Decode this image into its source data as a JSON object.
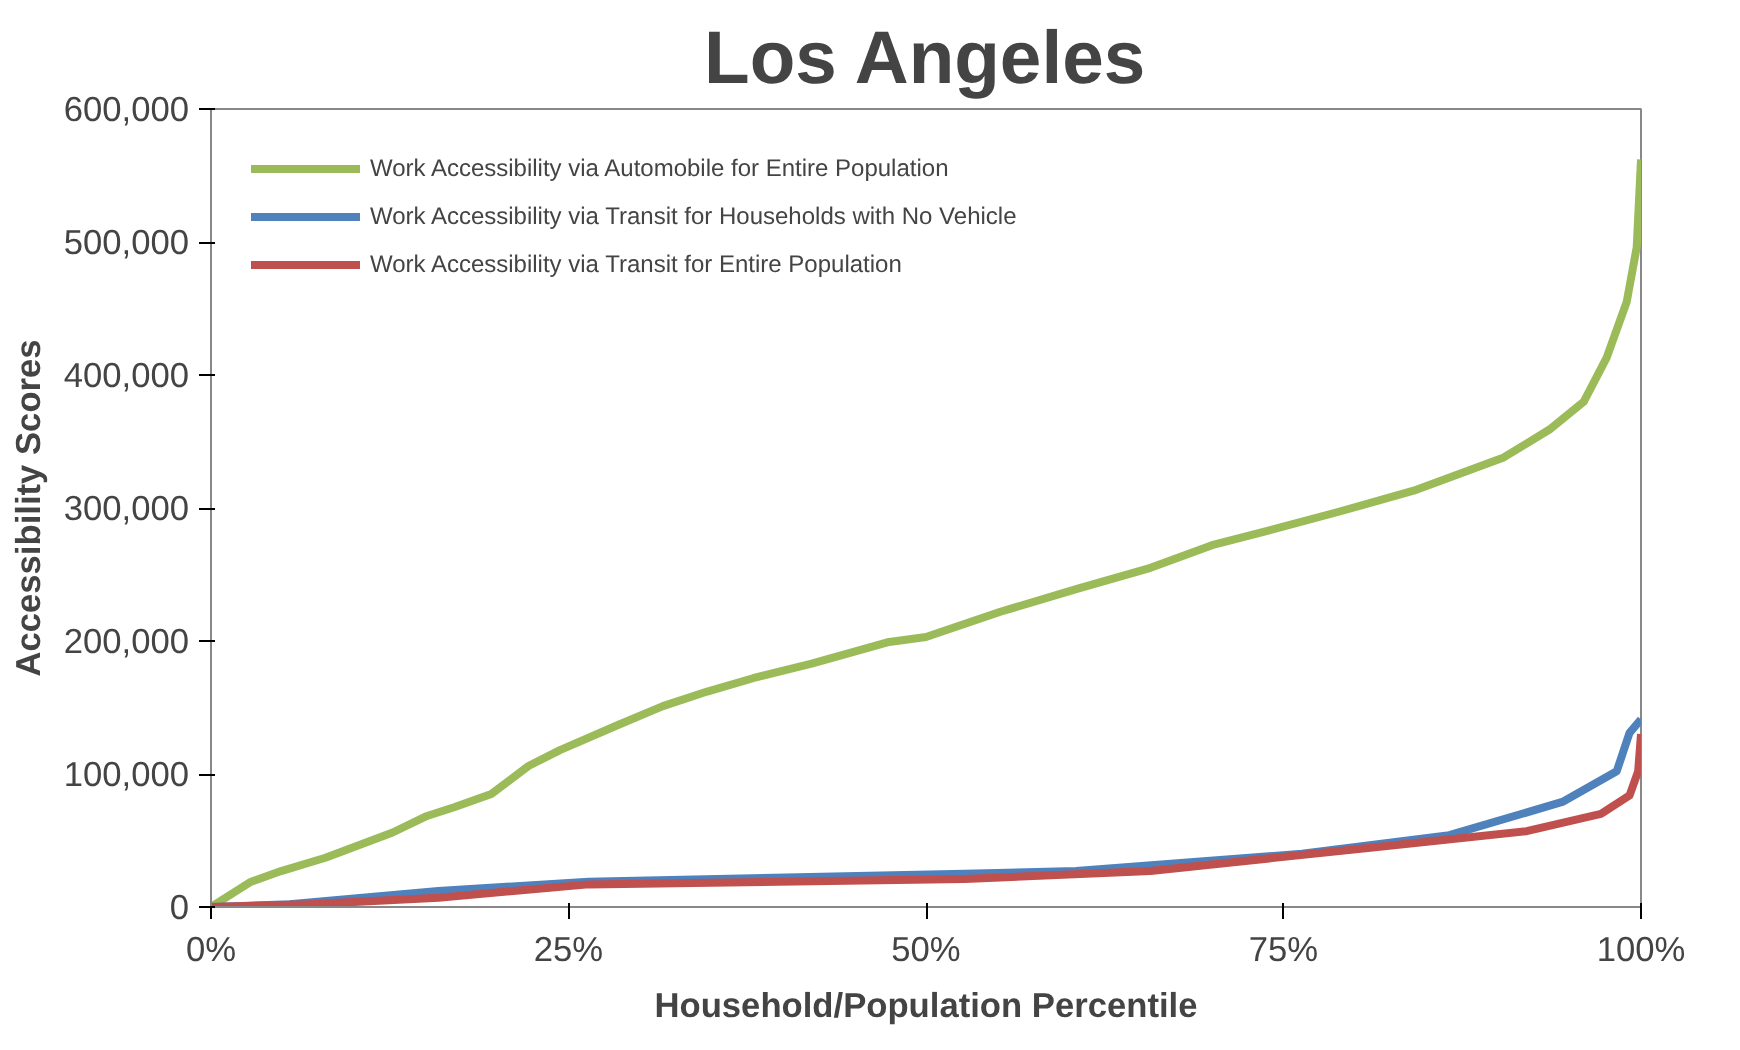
{
  "chart_data": {
    "type": "line",
    "title": "Los Angeles",
    "xlabel": "Household/Population Percentile",
    "ylabel": "Accessibility Scores",
    "xlim": [
      0,
      100
    ],
    "xticks": [
      {
        "value": 0,
        "label": "0%"
      },
      {
        "value": 25,
        "label": "25%"
      },
      {
        "value": 50,
        "label": "50%"
      },
      {
        "value": 75,
        "label": "75%"
      },
      {
        "value": 100,
        "label": "100%"
      }
    ],
    "ylim": [
      0,
      600000
    ],
    "yticks": [
      {
        "value": 0,
        "label": "0"
      },
      {
        "value": 100000,
        "label": "100,000"
      },
      {
        "value": 200000,
        "label": "200,000"
      },
      {
        "value": 300000,
        "label": "300,000"
      },
      {
        "value": 400000,
        "label": "400,000"
      },
      {
        "value": 500000,
        "label": "500,000"
      },
      {
        "value": 600000,
        "label": "600,000"
      }
    ],
    "grid": false,
    "legend": "top left",
    "marker": "none",
    "line_style": "solid",
    "series": [
      {
        "name": "Work Accessibility via Automobile for Entire Population",
        "color": "#9bbb59",
        "x": [
          0,
          2.8,
          4.9,
          8,
          10.7,
          12.7,
          15,
          17,
          19.6,
          22.2,
          24.4,
          28.5,
          31.6,
          34.7,
          37.9,
          42,
          47.3,
          50,
          55.2,
          60.5,
          65.7,
          70,
          73.6,
          78.8,
          84.1,
          90.4,
          93.6,
          96,
          97.6,
          99,
          99.7,
          100
        ],
        "values": [
          0,
          19000,
          27000,
          37000,
          48000,
          56000,
          68000,
          75000,
          85000,
          106000,
          118000,
          137000,
          151000,
          162000,
          172000,
          183000,
          199000,
          203000,
          222000,
          239000,
          255000,
          272000,
          282000,
          297000,
          313000,
          338000,
          359000,
          380000,
          413000,
          455000,
          496000,
          562000
        ]
      },
      {
        "name": "Work Accessibility via Transit for Households with No Vehicle",
        "color": "#4f81bd",
        "x": [
          0,
          5.5,
          15.9,
          26.4,
          52.7,
          60.5,
          76.3,
          86.6,
          94.5,
          98.3,
          99.2,
          100
        ],
        "values": [
          0,
          2000,
          12000,
          19000,
          25000,
          27000,
          40000,
          54000,
          79000,
          102000,
          131000,
          141000
        ]
      },
      {
        "name": "Work Accessibility via Transit for Entire Population",
        "color": "#c0504d",
        "x": [
          0,
          6.8,
          15.9,
          26.4,
          52.7,
          65.7,
          81.4,
          92,
          97.2,
          99.2,
          99.8,
          100
        ],
        "values": [
          0,
          2000,
          7000,
          17000,
          21000,
          27000,
          45000,
          57000,
          70000,
          84000,
          102000,
          130000
        ]
      }
    ]
  }
}
